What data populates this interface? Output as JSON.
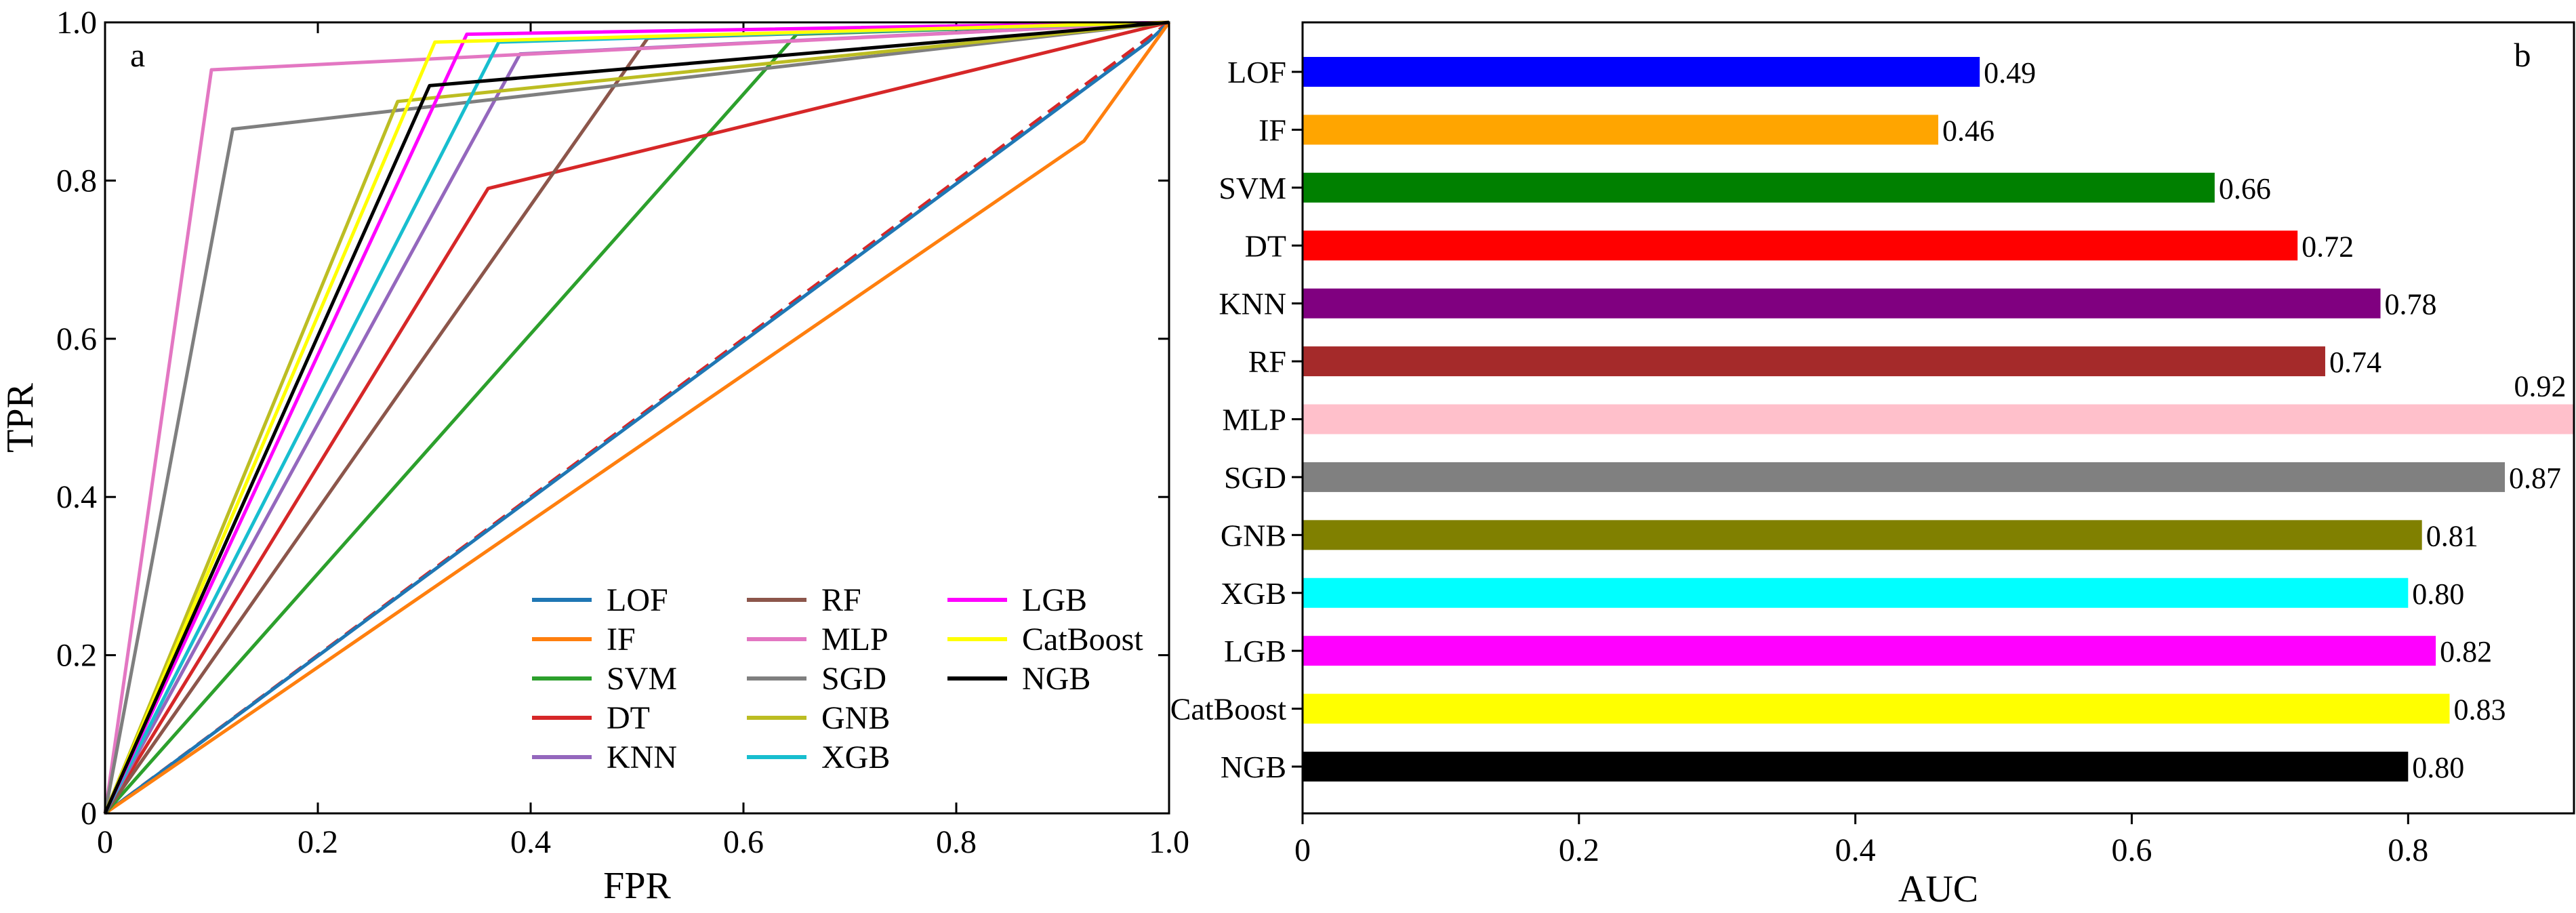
{
  "chart_data": [
    {
      "type": "line",
      "panel": "a",
      "xlabel": "FPR",
      "ylabel": "TPR",
      "xlim": [
        0,
        1
      ],
      "ylim": [
        0,
        1
      ],
      "xticks": [
        0,
        0.2,
        0.4,
        0.6,
        0.8,
        1.0
      ],
      "yticks": [
        0,
        0.2,
        0.4,
        0.6,
        0.8,
        1.0
      ],
      "xtick_labels": [
        "0",
        "0.2",
        "0.4",
        "0.6",
        "0.8",
        "1.0"
      ],
      "ytick_labels": [
        "0",
        "0.2",
        "0.4",
        "0.6",
        "0.8",
        "1.0"
      ],
      "grid": false,
      "legend_position": "bottom-right",
      "legend_columns": 3,
      "reference_line": {
        "x": [
          0,
          1
        ],
        "y": [
          0,
          1
        ],
        "color": "#d62728",
        "style": "dashed"
      },
      "series": [
        {
          "name": "LOF",
          "color": "#1f77b4",
          "x": [
            0,
            0.98,
            1
          ],
          "y": [
            0,
            0.975,
            1
          ]
        },
        {
          "name": "IF",
          "color": "#ff7f0e",
          "x": [
            0,
            0.92,
            1
          ],
          "y": [
            0,
            0.85,
            1
          ]
        },
        {
          "name": "SVM",
          "color": "#2ca02c",
          "x": [
            0,
            0.65,
            1
          ],
          "y": [
            0,
            0.985,
            1
          ]
        },
        {
          "name": "DT",
          "color": "#d62728",
          "x": [
            0,
            0.36,
            1
          ],
          "y": [
            0,
            0.79,
            1
          ]
        },
        {
          "name": "KNN",
          "color": "#9467bd",
          "x": [
            0,
            0.39,
            1
          ],
          "y": [
            0,
            0.96,
            1
          ]
        },
        {
          "name": "RF",
          "color": "#8c564b",
          "x": [
            0,
            0.51,
            1
          ],
          "y": [
            0,
            0.98,
            1
          ]
        },
        {
          "name": "MLP",
          "color": "#e377c2",
          "x": [
            0,
            0.1,
            1
          ],
          "y": [
            0,
            0.94,
            1
          ]
        },
        {
          "name": "SGD",
          "color": "#7f7f7f",
          "x": [
            0,
            0.12,
            1
          ],
          "y": [
            0,
            0.865,
            1
          ]
        },
        {
          "name": "GNB",
          "color": "#bcbd22",
          "x": [
            0,
            0.275,
            1
          ],
          "y": [
            0,
            0.9,
            1
          ]
        },
        {
          "name": "XGB",
          "color": "#17becf",
          "x": [
            0,
            0.37,
            1
          ],
          "y": [
            0,
            0.975,
            1
          ]
        },
        {
          "name": "LGB",
          "color": "#ff00ff",
          "x": [
            0,
            0.34,
            1
          ],
          "y": [
            0,
            0.985,
            1
          ]
        },
        {
          "name": "CatBoost",
          "color": "#ffff00",
          "x": [
            0,
            0.31,
            1
          ],
          "y": [
            0,
            0.975,
            1
          ]
        },
        {
          "name": "NGB",
          "color": "#000000",
          "x": [
            0,
            0.305,
            1
          ],
          "y": [
            0,
            0.92,
            1
          ]
        }
      ]
    },
    {
      "type": "bar",
      "orientation": "horizontal",
      "panel": "b",
      "xlabel": "AUC",
      "ylabel": "",
      "xlim": [
        0,
        0.92
      ],
      "xticks": [
        0,
        0.2,
        0.4,
        0.6,
        0.8
      ],
      "xtick_labels": [
        "0",
        "0.2",
        "0.4",
        "0.6",
        "0.8"
      ],
      "grid": false,
      "categories": [
        "LOF",
        "IF",
        "SVM",
        "DT",
        "KNN",
        "RF",
        "MLP",
        "SGD",
        "GNB",
        "XGB",
        "LGB",
        "CatBoost",
        "NGB"
      ],
      "values": [
        0.49,
        0.46,
        0.66,
        0.72,
        0.78,
        0.74,
        0.92,
        0.87,
        0.81,
        0.8,
        0.82,
        0.83,
        0.8
      ],
      "value_labels": [
        "0.49",
        "0.46",
        "0.66",
        "0.72",
        "0.78",
        "0.74",
        "0.92",
        "0.87",
        "0.81",
        "0.80",
        "0.82",
        "0.83",
        "0.80"
      ],
      "colors": [
        "#0000ff",
        "#ffa500",
        "#008000",
        "#ff0000",
        "#800080",
        "#a52a2a",
        "#ffc0cb",
        "#808080",
        "#808000",
        "#00ffff",
        "#ff00ff",
        "#ffff00",
        "#000000"
      ]
    }
  ]
}
